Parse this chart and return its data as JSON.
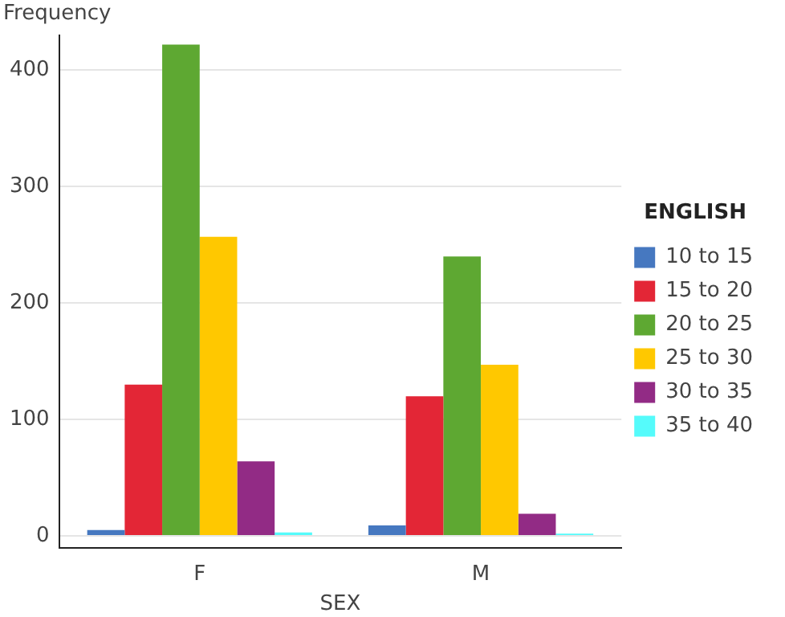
{
  "chart_data": {
    "type": "bar",
    "xlabel": "SEX",
    "ylabel": "Frequency",
    "legend_title": "ENGLISH",
    "categories": [
      "F",
      "M"
    ],
    "series": [
      {
        "name": "10 to 15",
        "color": "#4678c0",
        "values": [
          5,
          9
        ]
      },
      {
        "name": "15 to 20",
        "color": "#e32636",
        "values": [
          130,
          120
        ]
      },
      {
        "name": "20 to 25",
        "color": "#5ea832",
        "values": [
          422,
          240
        ]
      },
      {
        "name": "25 to 30",
        "color": "#ffc800",
        "values": [
          257,
          147
        ]
      },
      {
        "name": "30 to 35",
        "color": "#922b85",
        "values": [
          64,
          19
        ]
      },
      {
        "name": "35 to 40",
        "color": "#55fbfb",
        "values": [
          3,
          2
        ]
      }
    ],
    "ylim": [
      -10,
      430
    ],
    "yticks": [
      0,
      100,
      200,
      300,
      400
    ],
    "grid": "y",
    "legend": "right"
  }
}
